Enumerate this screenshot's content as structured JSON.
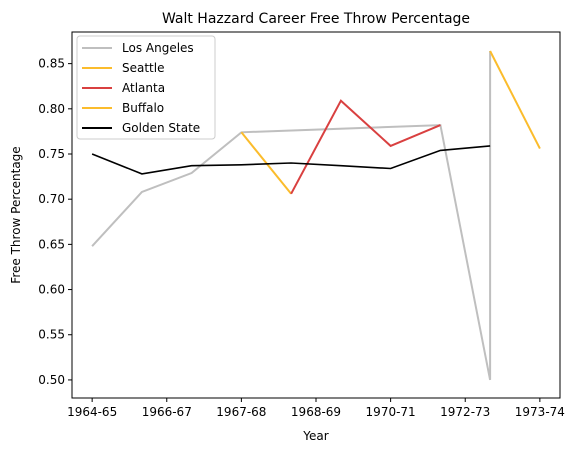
{
  "chart_data": {
    "type": "line",
    "title": "Walt Hazzard Career Free Throw Percentage",
    "xlabel": "Year",
    "ylabel": "Free Throw Percentage",
    "x_ticks": [
      "1964-65",
      "1966-67",
      "1967-68",
      "1968-69",
      "1970-71",
      "1972-73",
      "1973-74"
    ],
    "ylim": [
      0.48,
      0.885
    ],
    "y_ticks": [
      "0.50",
      "0.55",
      "0.60",
      "0.65",
      "0.70",
      "0.75",
      "0.80",
      "0.85"
    ],
    "grid": false,
    "legend_position": "top-left",
    "series": [
      {
        "name": "Los Angeles",
        "color": "#bfbfbf",
        "points": [
          {
            "x": "1964-65",
            "y": 0.648
          },
          {
            "x": "1965-66",
            "y": 0.708
          },
          {
            "x": "1966-67",
            "y": 0.729
          },
          {
            "x": "1967-68",
            "y": 0.774
          },
          {
            "x": "1971-72",
            "y": 0.782
          },
          {
            "x": "1972-73",
            "y": 0.5
          },
          {
            "x": "1972-73",
            "y": 0.864
          }
        ]
      },
      {
        "name": "Seattle",
        "color": "#fbbc2c",
        "points": [
          {
            "x": "1967-68",
            "y": 0.774
          },
          {
            "x": "1968-69",
            "y": 0.706
          }
        ]
      },
      {
        "name": "Atlanta",
        "color": "#d94040",
        "points": [
          {
            "x": "1968-69",
            "y": 0.706
          },
          {
            "x": "1969-70",
            "y": 0.809
          },
          {
            "x": "1970-71",
            "y": 0.759
          },
          {
            "x": "1971-72",
            "y": 0.782
          }
        ]
      },
      {
        "name": "Buffalo",
        "color": "#fbbc2c",
        "points": [
          {
            "x": "1972-73",
            "y": 0.864
          },
          {
            "x": "1973-74",
            "y": 0.756
          }
        ]
      },
      {
        "name": "Golden State",
        "color": "#000000",
        "points": [
          {
            "x": "1964-65",
            "y": 0.75
          },
          {
            "x": "1965-66",
            "y": 0.728
          },
          {
            "x": "1966-67",
            "y": 0.737
          },
          {
            "x": "1967-68",
            "y": 0.738
          },
          {
            "x": "1968-69",
            "y": 0.74
          },
          {
            "x": "1969-70",
            "y": 0.737
          },
          {
            "x": "1970-71",
            "y": 0.734
          },
          {
            "x": "1971-72",
            "y": 0.754
          },
          {
            "x": "1972-73",
            "y": 0.759
          }
        ]
      }
    ]
  }
}
